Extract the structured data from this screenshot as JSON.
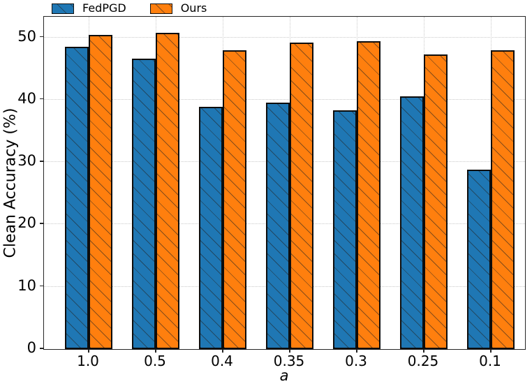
{
  "legend": {
    "items": [
      {
        "label": "FedPGD",
        "color": "#1f77b4"
      },
      {
        "label": "Ours",
        "color": "#ff7f0e"
      }
    ]
  },
  "chart_data": {
    "type": "bar",
    "title": "",
    "xlabel": "a",
    "ylabel": "Clean Accuracy (%)",
    "categories": [
      "1.0",
      "0.5",
      "0.4",
      "0.35",
      "0.3",
      "0.25",
      "0.1"
    ],
    "series": [
      {
        "name": "FedPGD",
        "color": "#1f77b4",
        "values": [
          48.5,
          46.6,
          38.9,
          39.5,
          38.3,
          40.5,
          28.8
        ]
      },
      {
        "name": "Ours",
        "color": "#ff7f0e",
        "values": [
          50.4,
          50.7,
          47.9,
          49.2,
          49.4,
          47.3,
          47.9
        ]
      }
    ],
    "ylim": [
      0,
      53.2
    ],
    "yticks": [
      0,
      10,
      20,
      30,
      40,
      50
    ],
    "grid": true,
    "grid_style": "dotted",
    "grid_color": "#c9c9c9",
    "hatch": "\\",
    "bar_edge_color": "#0d0d0d",
    "legend_position": "top-left-above-axes"
  }
}
